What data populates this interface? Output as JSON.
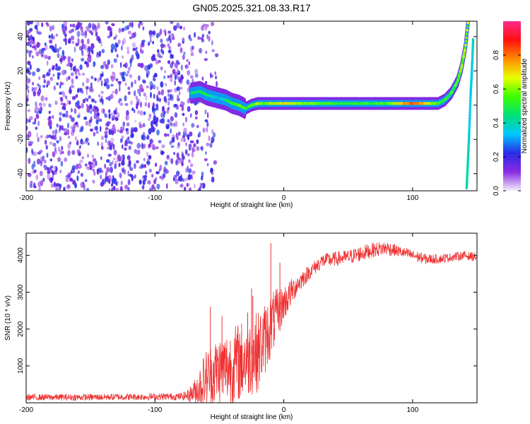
{
  "title": "GN05.2025.321.08.33.R17",
  "chart_data": [
    {
      "type": "heatmap",
      "name": "spectrogram",
      "title": "GN05.2025.321.08.33.R17",
      "xlabel": "Height of straight line (km)",
      "ylabel": "Frequency (Hz)",
      "xlim": [
        -200,
        150
      ],
      "ylim": [
        -50,
        49
      ],
      "xticks": [
        -200,
        -100,
        0,
        100
      ],
      "yticks": [
        -40,
        -20,
        0,
        20,
        40
      ],
      "xtick_labels": [
        "-200",
        "-100",
        "0",
        "100"
      ],
      "ytick_labels": [
        "-40",
        "-20",
        "0",
        "20",
        "40"
      ],
      "noise_region_x": [
        -200,
        -60
      ],
      "noise_region_amplitude": [
        0.05,
        0.25
      ],
      "signal_trace": {
        "x": [
          -72,
          -65,
          -60,
          -55,
          -50,
          -45,
          -40,
          -35,
          -30,
          -25,
          -20,
          -15,
          -10,
          -5,
          0,
          10,
          20,
          40,
          60,
          80,
          100,
          110,
          120,
          125,
          130,
          135,
          138,
          141,
          143
        ],
        "freq_hz": [
          7,
          8,
          6,
          5,
          4,
          3,
          1,
          0,
          -2,
          0,
          1,
          1,
          1,
          1,
          1,
          1,
          1,
          1,
          1,
          1,
          1,
          1,
          1,
          3,
          7,
          14,
          22,
          34,
          48
        ],
        "amplitude": [
          0.4,
          0.5,
          0.45,
          0.4,
          0.35,
          0.45,
          0.5,
          0.6,
          0.5,
          0.55,
          0.6,
          0.55,
          0.6,
          0.65,
          0.7,
          0.6,
          0.6,
          0.5,
          0.5,
          0.55,
          0.85,
          0.7,
          0.55,
          0.5,
          0.5,
          0.55,
          0.6,
          0.6,
          0.6
        ]
      },
      "aliased_trace": {
        "x": [
          147,
          146,
          145,
          144,
          143,
          142
        ],
        "freq_hz": [
          38,
          20,
          5,
          -15,
          -32,
          -48
        ],
        "amplitude": [
          0.4,
          0.35,
          0.35,
          0.35,
          0.4,
          0.4
        ]
      },
      "colorbar": {
        "label": "Normalized spectral amplitude",
        "range": [
          0,
          1
        ],
        "ticks": [
          0.0,
          0.2,
          0.4,
          0.6,
          0.8
        ],
        "tick_labels": [
          "0.0",
          "0.2",
          "0.4",
          "0.6",
          "0.8"
        ],
        "colors": [
          "#f4eefc",
          "#8a2be2",
          "#2b2be8",
          "#00c8ff",
          "#00e07a",
          "#3cff00",
          "#e8ff00",
          "#ff8a00",
          "#ff1010",
          "#ff2a8a"
        ]
      }
    },
    {
      "type": "line",
      "name": "snr",
      "xlabel": "Height of straight line (km)",
      "ylabel": "SNR (10 * v/v)",
      "xlim": [
        -200,
        150
      ],
      "ylim": [
        0,
        4600
      ],
      "xticks": [
        -200,
        -100,
        0,
        100
      ],
      "yticks": [
        1000,
        2000,
        3000,
        4000
      ],
      "xtick_labels": [
        "-200",
        "-100",
        "0",
        "100"
      ],
      "ytick_labels": [
        "1000",
        "2000",
        "3000",
        "4000"
      ],
      "color": "#ee3030",
      "envelope": {
        "x": [
          -200,
          -160,
          -120,
          -80,
          -75,
          -70,
          -65,
          -60,
          -55,
          -50,
          -45,
          -40,
          -35,
          -30,
          -25,
          -20,
          -15,
          -10,
          -5,
          0,
          5,
          10,
          20,
          30,
          40,
          50,
          60,
          70,
          80,
          90,
          100,
          110,
          120,
          130,
          140,
          150
        ],
        "mean": [
          150,
          150,
          160,
          170,
          200,
          280,
          450,
          700,
          800,
          900,
          950,
          1000,
          1100,
          1200,
          1300,
          1400,
          1700,
          2100,
          2400,
          2700,
          2950,
          3200,
          3550,
          3850,
          3900,
          3950,
          4050,
          4150,
          4200,
          4100,
          4000,
          3900,
          3900,
          3950,
          4000,
          3950
        ],
        "spread": [
          90,
          90,
          90,
          100,
          150,
          300,
          600,
          800,
          900,
          950,
          1000,
          1050,
          1100,
          1100,
          1100,
          1100,
          1000,
          900,
          700,
          500,
          400,
          300,
          200,
          200,
          200,
          200,
          220,
          200,
          200,
          150,
          150,
          150,
          120,
          120,
          120,
          120
        ]
      },
      "peaks": [
        {
          "x": -57,
          "y": 2600
        },
        {
          "x": -48,
          "y": 2350
        },
        {
          "x": -28,
          "y": 2450
        },
        {
          "x": -25,
          "y": 3100
        },
        {
          "x": -24,
          "y": 2900
        },
        {
          "x": -10,
          "y": 4330
        },
        {
          "x": -3,
          "y": 3800
        }
      ]
    }
  ]
}
